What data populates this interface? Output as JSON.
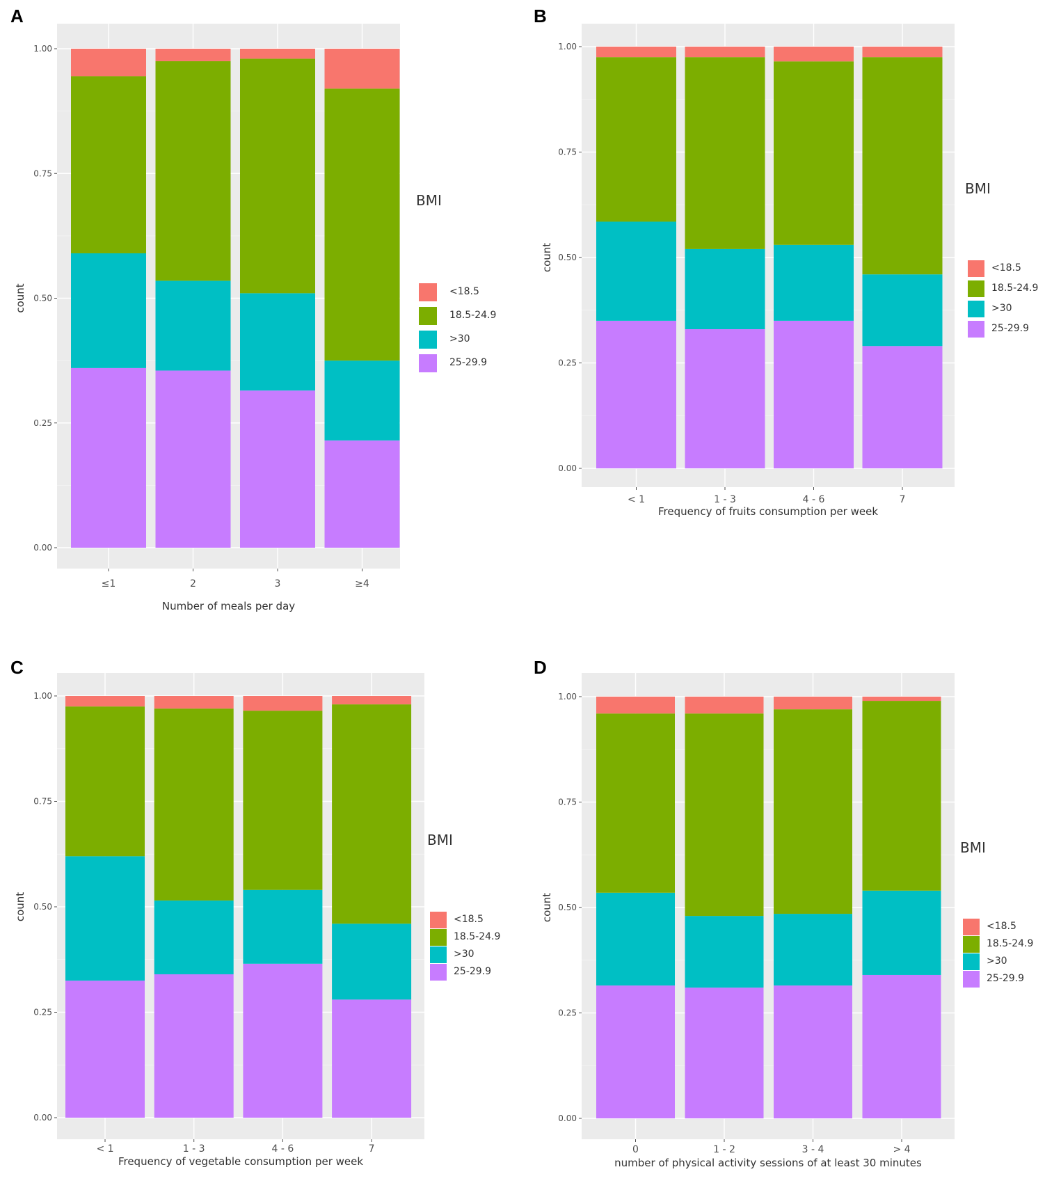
{
  "chart_data": [
    {
      "panel": "A",
      "type": "bar",
      "stacked": true,
      "xlabel": "Number of meals per day",
      "ylabel": "count",
      "ylim": [
        0,
        1
      ],
      "yticks": [
        "0.00",
        "0.25",
        "0.50",
        "0.75",
        "1.00"
      ],
      "categories": [
        "≤1",
        "2",
        "3",
        "≥4"
      ],
      "legend_title": "BMI",
      "legend": [
        "<18.5",
        "18.5-24.9",
        ">30",
        "25-29.9"
      ],
      "series": [
        {
          "name": "25-29.9",
          "color": "#c77cff",
          "values": [
            0.36,
            0.355,
            0.315,
            0.215
          ]
        },
        {
          "name": ">30",
          "color": "#00bfc4",
          "values": [
            0.23,
            0.18,
            0.195,
            0.16
          ]
        },
        {
          "name": "18.5-24.9",
          "color": "#7cae00",
          "values": [
            0.355,
            0.44,
            0.47,
            0.545
          ]
        },
        {
          "name": "<18.5",
          "color": "#f8766d",
          "values": [
            0.055,
            0.025,
            0.02,
            0.08
          ]
        }
      ]
    },
    {
      "panel": "B",
      "type": "bar",
      "stacked": true,
      "xlabel": "Frequency of fruits consumption per week",
      "ylabel": "count",
      "ylim": [
        0,
        1
      ],
      "yticks": [
        "0.00",
        "0.25",
        "0.50",
        "0.75",
        "1.00"
      ],
      "categories": [
        "< 1",
        "1 - 3",
        "4 - 6",
        "7"
      ],
      "legend_title": "BMI",
      "legend": [
        "<18.5",
        "18.5-24.9",
        ">30",
        "25-29.9"
      ],
      "series": [
        {
          "name": "25-29.9",
          "color": "#c77cff",
          "values": [
            0.35,
            0.33,
            0.35,
            0.29
          ]
        },
        {
          "name": ">30",
          "color": "#00bfc4",
          "values": [
            0.235,
            0.19,
            0.18,
            0.17
          ]
        },
        {
          "name": "18.5-24.9",
          "color": "#7cae00",
          "values": [
            0.39,
            0.455,
            0.435,
            0.515
          ]
        },
        {
          "name": "<18.5",
          "color": "#f8766d",
          "values": [
            0.025,
            0.025,
            0.035,
            0.025
          ]
        }
      ]
    },
    {
      "panel": "C",
      "type": "bar",
      "stacked": true,
      "xlabel": "Frequency of vegetable consumption per week",
      "ylabel": "count",
      "ylim": [
        0,
        1
      ],
      "yticks": [
        "0.00",
        "0.25",
        "0.50",
        "0.75",
        "1.00"
      ],
      "categories": [
        "< 1",
        "1 - 3",
        "4 - 6",
        "7"
      ],
      "legend_title": "BMI",
      "legend": [
        "<18.5",
        "18.5-24.9",
        ">30",
        "25-29.9"
      ],
      "series": [
        {
          "name": "25-29.9",
          "color": "#c77cff",
          "values": [
            0.325,
            0.34,
            0.365,
            0.28
          ]
        },
        {
          "name": ">30",
          "color": "#00bfc4",
          "values": [
            0.295,
            0.175,
            0.175,
            0.18
          ]
        },
        {
          "name": "18.5-24.9",
          "color": "#7cae00",
          "values": [
            0.355,
            0.455,
            0.425,
            0.52
          ]
        },
        {
          "name": "<18.5",
          "color": "#f8766d",
          "values": [
            0.025,
            0.03,
            0.035,
            0.02
          ]
        }
      ]
    },
    {
      "panel": "D",
      "type": "bar",
      "stacked": true,
      "xlabel": "number of physical activity sessions of at least 30 minutes",
      "ylabel": "count",
      "ylim": [
        0,
        1
      ],
      "yticks": [
        "0.00",
        "0.25",
        "0.50",
        "0.75",
        "1.00"
      ],
      "categories": [
        "0",
        "1 - 2",
        "3 - 4",
        "> 4"
      ],
      "legend_title": "BMI",
      "legend": [
        "<18.5",
        "18.5-24.9",
        ">30",
        "25-29.9"
      ],
      "series": [
        {
          "name": "25-29.9",
          "color": "#c77cff",
          "values": [
            0.315,
            0.31,
            0.315,
            0.34
          ]
        },
        {
          "name": ">30",
          "color": "#00bfc4",
          "values": [
            0.22,
            0.17,
            0.17,
            0.2
          ]
        },
        {
          "name": "18.5-24.9",
          "color": "#7cae00",
          "values": [
            0.425,
            0.48,
            0.485,
            0.45
          ]
        },
        {
          "name": "<18.5",
          "color": "#f8766d",
          "values": [
            0.04,
            0.04,
            0.03,
            0.01
          ]
        }
      ]
    }
  ]
}
